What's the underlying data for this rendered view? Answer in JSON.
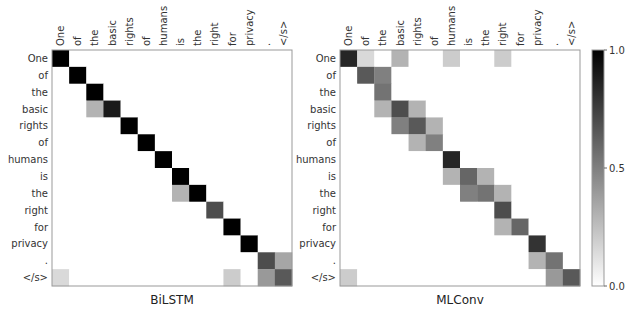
{
  "chart_data": [
    {
      "type": "heatmap",
      "x_label": "BiLSTM",
      "categories": [
        "One",
        "of",
        "the",
        "basic",
        "rights",
        "of",
        "humans",
        "is",
        "the",
        "right",
        "for",
        "privacy",
        ".",
        "</s>"
      ],
      "color": "#000000",
      "color_range": [
        0,
        1
      ],
      "values": [
        [
          1.0,
          0.0,
          0.0,
          0.0,
          0.0,
          0.0,
          0.0,
          0.0,
          0.0,
          0.0,
          0.0,
          0.0,
          0.0,
          0.0
        ],
        [
          0.0,
          1.0,
          0.0,
          0.0,
          0.0,
          0.0,
          0.0,
          0.0,
          0.0,
          0.0,
          0.0,
          0.0,
          0.0,
          0.0
        ],
        [
          0.0,
          0.0,
          1.0,
          0.0,
          0.0,
          0.0,
          0.0,
          0.0,
          0.0,
          0.0,
          0.0,
          0.0,
          0.0,
          0.0
        ],
        [
          0.0,
          0.0,
          0.3,
          0.9,
          0.0,
          0.0,
          0.0,
          0.0,
          0.0,
          0.0,
          0.0,
          0.0,
          0.0,
          0.0
        ],
        [
          0.0,
          0.0,
          0.0,
          0.0,
          1.0,
          0.0,
          0.0,
          0.0,
          0.0,
          0.0,
          0.0,
          0.0,
          0.0,
          0.0
        ],
        [
          0.0,
          0.0,
          0.0,
          0.0,
          0.0,
          1.0,
          0.0,
          0.0,
          0.0,
          0.0,
          0.0,
          0.0,
          0.0,
          0.0
        ],
        [
          0.0,
          0.0,
          0.0,
          0.0,
          0.0,
          0.0,
          1.0,
          0.0,
          0.0,
          0.0,
          0.0,
          0.0,
          0.0,
          0.0
        ],
        [
          0.0,
          0.0,
          0.0,
          0.0,
          0.0,
          0.0,
          0.0,
          1.0,
          0.0,
          0.0,
          0.0,
          0.0,
          0.0,
          0.0
        ],
        [
          0.0,
          0.0,
          0.0,
          0.0,
          0.0,
          0.0,
          0.0,
          0.3,
          1.0,
          0.0,
          0.0,
          0.0,
          0.0,
          0.0
        ],
        [
          0.0,
          0.0,
          0.0,
          0.0,
          0.0,
          0.0,
          0.0,
          0.0,
          0.0,
          0.7,
          0.0,
          0.0,
          0.0,
          0.0
        ],
        [
          0.0,
          0.0,
          0.0,
          0.0,
          0.0,
          0.0,
          0.0,
          0.0,
          0.0,
          0.0,
          1.0,
          0.0,
          0.0,
          0.0
        ],
        [
          0.0,
          0.0,
          0.0,
          0.0,
          0.0,
          0.0,
          0.0,
          0.0,
          0.0,
          0.0,
          0.0,
          1.0,
          0.0,
          0.0
        ],
        [
          0.0,
          0.0,
          0.0,
          0.0,
          0.0,
          0.0,
          0.0,
          0.0,
          0.0,
          0.0,
          0.0,
          0.0,
          0.7,
          0.35
        ],
        [
          0.15,
          0.0,
          0.0,
          0.0,
          0.0,
          0.0,
          0.0,
          0.0,
          0.0,
          0.0,
          0.2,
          0.0,
          0.4,
          0.65
        ]
      ]
    },
    {
      "type": "heatmap",
      "x_label": "MLConv",
      "categories": [
        "One",
        "of",
        "the",
        "basic",
        "rights",
        "of",
        "humans",
        "is",
        "the",
        "right",
        "for",
        "privacy",
        ".",
        "</s>"
      ],
      "color": "#000000",
      "color_range": [
        0,
        1
      ],
      "colorbar_ticks": [
        {
          "value": 0,
          "label": "0.0"
        },
        {
          "value": 0.5,
          "label": "0.5"
        },
        {
          "value": 1,
          "label": "1.0"
        }
      ],
      "values": [
        [
          0.85,
          0.15,
          0.0,
          0.3,
          0.0,
          0.0,
          0.2,
          0.0,
          0.0,
          0.2,
          0.0,
          0.0,
          0.0,
          0.0
        ],
        [
          0.0,
          0.65,
          0.5,
          0.0,
          0.0,
          0.0,
          0.0,
          0.0,
          0.0,
          0.0,
          0.0,
          0.0,
          0.0,
          0.0
        ],
        [
          0.0,
          0.0,
          0.55,
          0.0,
          0.0,
          0.0,
          0.0,
          0.0,
          0.0,
          0.0,
          0.0,
          0.0,
          0.0,
          0.0
        ],
        [
          0.0,
          0.0,
          0.3,
          0.7,
          0.3,
          0.0,
          0.0,
          0.0,
          0.0,
          0.0,
          0.0,
          0.0,
          0.0,
          0.0
        ],
        [
          0.0,
          0.0,
          0.0,
          0.5,
          0.65,
          0.3,
          0.0,
          0.0,
          0.0,
          0.0,
          0.0,
          0.0,
          0.0,
          0.0
        ],
        [
          0.0,
          0.0,
          0.0,
          0.0,
          0.3,
          0.5,
          0.0,
          0.0,
          0.0,
          0.0,
          0.0,
          0.0,
          0.0,
          0.0
        ],
        [
          0.0,
          0.0,
          0.0,
          0.0,
          0.0,
          0.0,
          0.85,
          0.0,
          0.0,
          0.0,
          0.0,
          0.0,
          0.0,
          0.0
        ],
        [
          0.0,
          0.0,
          0.0,
          0.0,
          0.0,
          0.0,
          0.3,
          0.6,
          0.3,
          0.0,
          0.0,
          0.0,
          0.0,
          0.0
        ],
        [
          0.0,
          0.0,
          0.0,
          0.0,
          0.0,
          0.0,
          0.0,
          0.5,
          0.55,
          0.3,
          0.0,
          0.0,
          0.0,
          0.0
        ],
        [
          0.0,
          0.0,
          0.0,
          0.0,
          0.0,
          0.0,
          0.0,
          0.0,
          0.0,
          0.7,
          0.0,
          0.0,
          0.0,
          0.0
        ],
        [
          0.0,
          0.0,
          0.0,
          0.0,
          0.0,
          0.0,
          0.0,
          0.0,
          0.0,
          0.3,
          0.6,
          0.0,
          0.0,
          0.0
        ],
        [
          0.0,
          0.0,
          0.0,
          0.0,
          0.0,
          0.0,
          0.0,
          0.0,
          0.0,
          0.0,
          0.0,
          0.8,
          0.0,
          0.0
        ],
        [
          0.0,
          0.0,
          0.0,
          0.0,
          0.0,
          0.0,
          0.0,
          0.0,
          0.0,
          0.0,
          0.0,
          0.3,
          0.55,
          0.0
        ],
        [
          0.2,
          0.0,
          0.0,
          0.0,
          0.0,
          0.0,
          0.0,
          0.0,
          0.0,
          0.0,
          0.0,
          0.0,
          0.4,
          0.65
        ]
      ]
    }
  ]
}
